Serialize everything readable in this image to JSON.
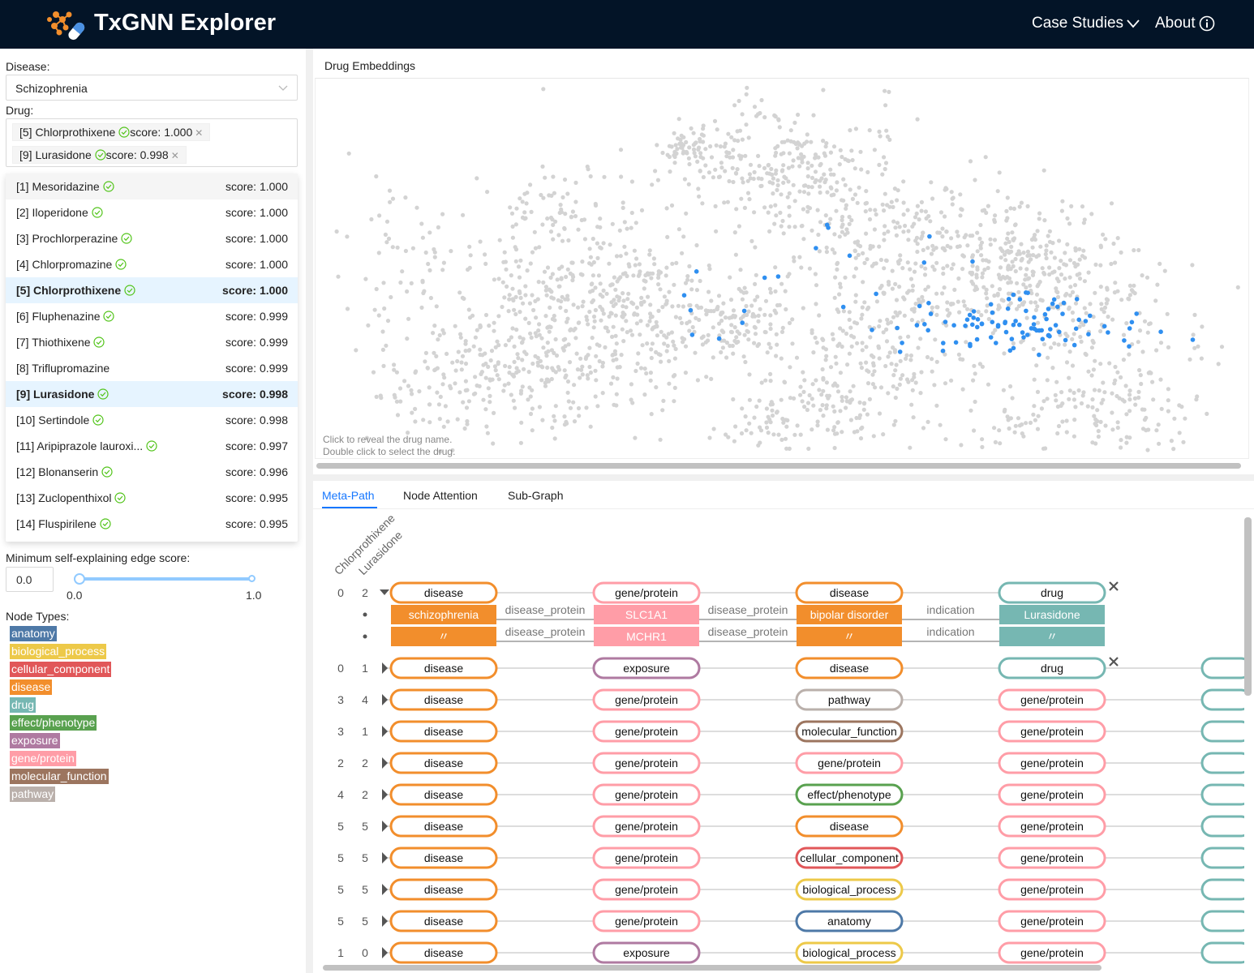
{
  "header": {
    "title": "TxGNN Explorer",
    "nav": [
      {
        "label": "Case Studies",
        "icon": "chevron-down-icon"
      },
      {
        "label": "About",
        "icon": "info-icon"
      }
    ]
  },
  "left": {
    "disease_label": "Disease:",
    "disease_value": "Schizophrenia",
    "drug_label": "Drug:",
    "selected_tags": [
      {
        "name": "[5] Chlorprothixene",
        "score": "score: 1.000"
      },
      {
        "name": "[9] Lurasidone",
        "score": "score: 0.998"
      }
    ],
    "options": [
      {
        "name": "[1] Mesoridazine",
        "check": true,
        "score": "score: 1.000",
        "state": "active"
      },
      {
        "name": "[2] Iloperidone",
        "check": true,
        "score": "score: 1.000",
        "state": ""
      },
      {
        "name": "[3] Prochlorperazine",
        "check": true,
        "score": "score: 1.000",
        "state": ""
      },
      {
        "name": "[4] Chlorpromazine",
        "check": true,
        "score": "score: 1.000",
        "state": ""
      },
      {
        "name": "[5] Chlorprothixene",
        "check": true,
        "score": "score: 1.000",
        "state": "sel"
      },
      {
        "name": "[6] Fluphenazine",
        "check": true,
        "score": "score: 0.999",
        "state": ""
      },
      {
        "name": "[7] Thiothixene",
        "check": true,
        "score": "score: 0.999",
        "state": ""
      },
      {
        "name": "[8] Triflupromazine",
        "check": false,
        "score": "score: 0.999",
        "state": ""
      },
      {
        "name": "[9] Lurasidone",
        "check": true,
        "score": "score: 0.998",
        "state": "sel"
      },
      {
        "name": "[10] Sertindole",
        "check": true,
        "score": "score: 0.998",
        "state": ""
      },
      {
        "name": "[11] Aripiprazole lauroxi...",
        "check": true,
        "score": "score: 0.997",
        "state": ""
      },
      {
        "name": "[12] Blonanserin",
        "check": true,
        "score": "score: 0.996",
        "state": ""
      },
      {
        "name": "[13] Zuclopenthixol",
        "check": true,
        "score": "score: 0.995",
        "state": ""
      },
      {
        "name": "[14] Fluspirilene",
        "check": true,
        "score": "score: 0.995",
        "state": ""
      }
    ],
    "min_score_label": "Minimum self-explaining edge score:",
    "min_score_value": "0.0",
    "slider_min": "0.0",
    "slider_max": "1.0",
    "slider_low": 0.0,
    "slider_high": 1.0,
    "node_types_label": "Node Types:",
    "node_types": [
      {
        "name": "anatomy",
        "color": "#4e79a7"
      },
      {
        "name": "biological_process",
        "color": "#edc949"
      },
      {
        "name": "cellular_component",
        "color": "#e15759"
      },
      {
        "name": "disease",
        "color": "#f28e2c"
      },
      {
        "name": "drug",
        "color": "#76b7b2"
      },
      {
        "name": "effect/phenotype",
        "color": "#59a14f"
      },
      {
        "name": "exposure",
        "color": "#af7aa1"
      },
      {
        "name": "gene/protein",
        "color": "#ff9da7"
      },
      {
        "name": "molecular_function",
        "color": "#9c755f"
      },
      {
        "name": "pathway",
        "color": "#bab0ab"
      }
    ]
  },
  "embeddings": {
    "title": "Drug Embeddings",
    "hint1": "Click to reveal the drug name.",
    "hint2": "Double click to select the drug."
  },
  "tabs": [
    "Meta-Path",
    "Node Attention",
    "Sub-Graph"
  ],
  "metapath": {
    "drugs": [
      "Chlorprothixene",
      "Lurasidone"
    ],
    "expanded": {
      "counts": [
        "0",
        "2"
      ],
      "nodes": [
        "disease",
        "gene/protein",
        "disease",
        "drug"
      ],
      "instances": [
        {
          "cells": [
            "schizophrenia",
            "SLC1A1",
            "bipolar disorder",
            "Lurasidone"
          ],
          "edges": [
            "disease_protein",
            "disease_protein",
            "indication"
          ]
        },
        {
          "cells": [
            "〃",
            "MCHR1",
            "〃",
            "〃"
          ],
          "edges": [
            "disease_protein",
            "disease_protein",
            "indication"
          ]
        }
      ]
    },
    "rows": [
      {
        "counts": [
          "0",
          "1"
        ],
        "nodes": [
          "disease",
          "exposure",
          "disease",
          "drug"
        ],
        "close": true
      },
      {
        "counts": [
          "3",
          "4"
        ],
        "nodes": [
          "disease",
          "gene/protein",
          "pathway",
          "gene/protein"
        ],
        "close": false
      },
      {
        "counts": [
          "3",
          "1"
        ],
        "nodes": [
          "disease",
          "gene/protein",
          "molecular_function",
          "gene/protein"
        ],
        "close": false
      },
      {
        "counts": [
          "2",
          "2"
        ],
        "nodes": [
          "disease",
          "gene/protein",
          "gene/protein",
          "gene/protein"
        ],
        "close": false
      },
      {
        "counts": [
          "4",
          "2"
        ],
        "nodes": [
          "disease",
          "gene/protein",
          "effect/phenotype",
          "gene/protein"
        ],
        "close": false
      },
      {
        "counts": [
          "5",
          "5"
        ],
        "nodes": [
          "disease",
          "gene/protein",
          "disease",
          "gene/protein"
        ],
        "close": false
      },
      {
        "counts": [
          "5",
          "5"
        ],
        "nodes": [
          "disease",
          "gene/protein",
          "cellular_component",
          "gene/protein"
        ],
        "close": false
      },
      {
        "counts": [
          "5",
          "5"
        ],
        "nodes": [
          "disease",
          "gene/protein",
          "biological_process",
          "gene/protein"
        ],
        "close": false
      },
      {
        "counts": [
          "5",
          "5"
        ],
        "nodes": [
          "disease",
          "gene/protein",
          "anatomy",
          "gene/protein"
        ],
        "close": false
      },
      {
        "counts": [
          "1",
          "0"
        ],
        "nodes": [
          "disease",
          "exposure",
          "biological_process",
          "gene/protein"
        ],
        "close": false
      }
    ]
  },
  "colors": {
    "header_bg": "#031427",
    "accent": "#1677ff",
    "point": "#d3d3d3",
    "highlight": "#2f8ff0"
  }
}
